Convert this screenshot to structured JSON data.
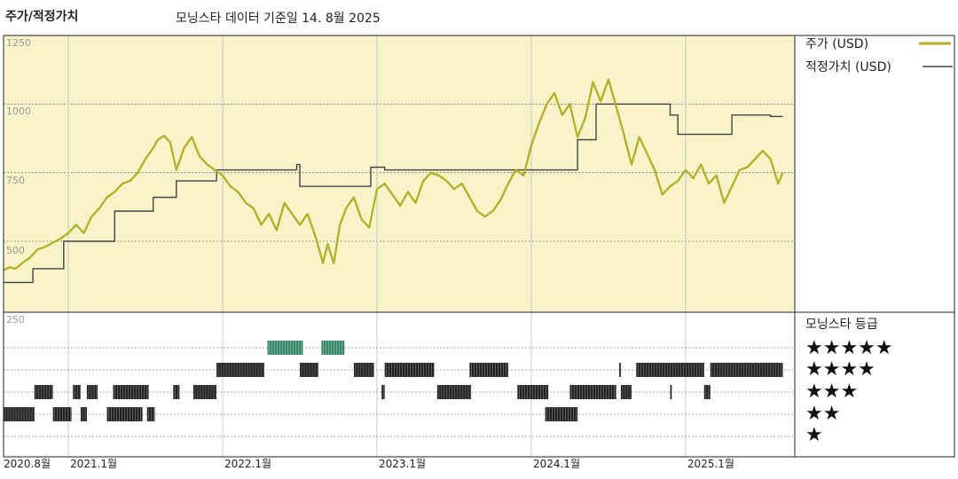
{
  "header": {
    "title": "주가/적정가치",
    "subtitle": "모닝스타 데이터 기준일 14. 8월 2025"
  },
  "colors": {
    "price": "#b3b22a",
    "fair_value": "#444444",
    "band_bg": "#f8f3c8",
    "rating_bar": "#222222",
    "rating_5": "#3a8a6a"
  },
  "legend": {
    "price_label": "주가 (USD)",
    "fair_label": "적정가치 (USD)",
    "rating_title": "모닝스타 등급",
    "stars": [
      "★★★★★",
      "★★★★",
      "★★★",
      "★★",
      "★"
    ]
  },
  "chart_data": {
    "type": "line",
    "x_tick_labels": [
      "2020.8월",
      "2021.1월",
      "2022.1월",
      "2023.1월",
      "2024.1월",
      "2025.1월"
    ],
    "x_tick_dates": [
      2020.58,
      2021.0,
      2022.0,
      2023.0,
      2024.0,
      2025.0
    ],
    "x_range": [
      2020.58,
      2025.65
    ],
    "y_tick_labels": [
      "1250",
      "1000",
      "750",
      "500",
      "250"
    ],
    "y_ticks": [
      1250,
      1000,
      750,
      500,
      250
    ],
    "ylim": [
      250,
      1250
    ],
    "grid": true,
    "series": [
      {
        "name": "주가 (USD)",
        "points": [
          [
            2020.58,
            395
          ],
          [
            2020.62,
            405
          ],
          [
            2020.66,
            400
          ],
          [
            2020.7,
            420
          ],
          [
            2020.75,
            440
          ],
          [
            2020.8,
            470
          ],
          [
            2020.85,
            480
          ],
          [
            2020.9,
            495
          ],
          [
            2020.95,
            510
          ],
          [
            2021.0,
            530
          ],
          [
            2021.05,
            560
          ],
          [
            2021.1,
            530
          ],
          [
            2021.15,
            590
          ],
          [
            2021.2,
            620
          ],
          [
            2021.25,
            660
          ],
          [
            2021.3,
            680
          ],
          [
            2021.35,
            710
          ],
          [
            2021.4,
            720
          ],
          [
            2021.45,
            750
          ],
          [
            2021.5,
            800
          ],
          [
            2021.55,
            840
          ],
          [
            2021.58,
            870
          ],
          [
            2021.62,
            885
          ],
          [
            2021.66,
            860
          ],
          [
            2021.7,
            760
          ],
          [
            2021.75,
            840
          ],
          [
            2021.8,
            880
          ],
          [
            2021.85,
            810
          ],
          [
            2021.9,
            780
          ],
          [
            2021.95,
            760
          ],
          [
            2022.0,
            740
          ],
          [
            2022.05,
            700
          ],
          [
            2022.1,
            680
          ],
          [
            2022.15,
            640
          ],
          [
            2022.2,
            620
          ],
          [
            2022.25,
            560
          ],
          [
            2022.3,
            600
          ],
          [
            2022.35,
            540
          ],
          [
            2022.4,
            640
          ],
          [
            2022.45,
            600
          ],
          [
            2022.5,
            560
          ],
          [
            2022.55,
            600
          ],
          [
            2022.6,
            520
          ],
          [
            2022.65,
            420
          ],
          [
            2022.68,
            490
          ],
          [
            2022.72,
            420
          ],
          [
            2022.76,
            560
          ],
          [
            2022.8,
            620
          ],
          [
            2022.85,
            660
          ],
          [
            2022.9,
            580
          ],
          [
            2022.95,
            550
          ],
          [
            2023.0,
            690
          ],
          [
            2023.05,
            710
          ],
          [
            2023.1,
            670
          ],
          [
            2023.15,
            630
          ],
          [
            2023.2,
            680
          ],
          [
            2023.25,
            640
          ],
          [
            2023.3,
            720
          ],
          [
            2023.35,
            750
          ],
          [
            2023.4,
            740
          ],
          [
            2023.45,
            720
          ],
          [
            2023.5,
            690
          ],
          [
            2023.55,
            710
          ],
          [
            2023.6,
            660
          ],
          [
            2023.65,
            610
          ],
          [
            2023.7,
            590
          ],
          [
            2023.75,
            610
          ],
          [
            2023.8,
            650
          ],
          [
            2023.85,
            710
          ],
          [
            2023.9,
            760
          ],
          [
            2023.95,
            740
          ],
          [
            2024.0,
            850
          ],
          [
            2024.05,
            930
          ],
          [
            2024.1,
            1000
          ],
          [
            2024.15,
            1040
          ],
          [
            2024.2,
            960
          ],
          [
            2024.25,
            1000
          ],
          [
            2024.3,
            880
          ],
          [
            2024.35,
            950
          ],
          [
            2024.4,
            1080
          ],
          [
            2024.45,
            1010
          ],
          [
            2024.5,
            1090
          ],
          [
            2024.53,
            1030
          ],
          [
            2024.56,
            970
          ],
          [
            2024.6,
            890
          ],
          [
            2024.65,
            780
          ],
          [
            2024.7,
            880
          ],
          [
            2024.75,
            820
          ],
          [
            2024.8,
            760
          ],
          [
            2024.85,
            670
          ],
          [
            2024.9,
            700
          ],
          [
            2024.95,
            720
          ],
          [
            2025.0,
            760
          ],
          [
            2025.05,
            730
          ],
          [
            2025.1,
            780
          ],
          [
            2025.15,
            710
          ],
          [
            2025.2,
            740
          ],
          [
            2025.25,
            640
          ],
          [
            2025.3,
            700
          ],
          [
            2025.35,
            760
          ],
          [
            2025.4,
            770
          ],
          [
            2025.45,
            800
          ],
          [
            2025.5,
            830
          ],
          [
            2025.55,
            800
          ],
          [
            2025.6,
            710
          ],
          [
            2025.63,
            750
          ]
        ]
      },
      {
        "name": "적정가치 (USD)",
        "points": [
          [
            2020.58,
            350
          ],
          [
            2020.77,
            350
          ],
          [
            2020.77,
            400
          ],
          [
            2020.97,
            400
          ],
          [
            2020.97,
            500
          ],
          [
            2021.3,
            500
          ],
          [
            2021.3,
            610
          ],
          [
            2021.55,
            610
          ],
          [
            2021.55,
            660
          ],
          [
            2021.7,
            660
          ],
          [
            2021.7,
            720
          ],
          [
            2021.96,
            720
          ],
          [
            2021.96,
            760
          ],
          [
            2022.48,
            760
          ],
          [
            2022.48,
            760
          ],
          [
            2022.48,
            780
          ],
          [
            2022.5,
            780
          ],
          [
            2022.5,
            700
          ],
          [
            2022.85,
            700
          ],
          [
            2022.85,
            700
          ],
          [
            2022.96,
            700
          ],
          [
            2022.96,
            770
          ],
          [
            2023.05,
            770
          ],
          [
            2023.05,
            760
          ],
          [
            2023.9,
            760
          ],
          [
            2023.9,
            760
          ],
          [
            2024.3,
            760
          ],
          [
            2024.3,
            870
          ],
          [
            2024.42,
            870
          ],
          [
            2024.42,
            1000
          ],
          [
            2024.9,
            1000
          ],
          [
            2024.9,
            960
          ],
          [
            2024.95,
            960
          ],
          [
            2024.95,
            890
          ],
          [
            2025.3,
            890
          ],
          [
            2025.3,
            960
          ],
          [
            2025.55,
            960
          ],
          [
            2025.55,
            955
          ],
          [
            2025.63,
            955
          ]
        ]
      }
    ],
    "ratings": {
      "levels": [
        5,
        4,
        3,
        2,
        1
      ],
      "segments": [
        {
          "stars": 2,
          "from": 2020.58,
          "to": 2020.78
        },
        {
          "stars": 2,
          "from": 2020.9,
          "to": 2021.02
        },
        {
          "stars": 2,
          "from": 2021.08,
          "to": 2021.12
        },
        {
          "stars": 2,
          "from": 2021.25,
          "to": 2021.48
        },
        {
          "stars": 2,
          "from": 2021.51,
          "to": 2021.56
        },
        {
          "stars": 3,
          "from": 2020.78,
          "to": 2020.9
        },
        {
          "stars": 3,
          "from": 2021.03,
          "to": 2021.08
        },
        {
          "stars": 3,
          "from": 2021.12,
          "to": 2021.19
        },
        {
          "stars": 3,
          "from": 2021.29,
          "to": 2021.52
        },
        {
          "stars": 3,
          "from": 2021.68,
          "to": 2021.72
        },
        {
          "stars": 3,
          "from": 2021.81,
          "to": 2021.96
        },
        {
          "stars": 4,
          "from": 2021.96,
          "to": 2022.27
        },
        {
          "stars": 4,
          "from": 2022.5,
          "to": 2022.62
        },
        {
          "stars": 4,
          "from": 2022.85,
          "to": 2022.98
        },
        {
          "stars": 4,
          "from": 2023.05,
          "to": 2023.37
        },
        {
          "stars": 4,
          "from": 2023.6,
          "to": 2023.85
        },
        {
          "stars": 4,
          "from": 2024.57,
          "to": 2024.58
        },
        {
          "stars": 4,
          "from": 2024.68,
          "to": 2025.12
        },
        {
          "stars": 4,
          "from": 2025.16,
          "to": 2025.63
        },
        {
          "stars": 5,
          "from": 2022.29,
          "to": 2022.52
        },
        {
          "stars": 5,
          "from": 2022.64,
          "to": 2022.79
        },
        {
          "stars": 3,
          "from": 2023.03,
          "to": 2023.05
        },
        {
          "stars": 3,
          "from": 2023.39,
          "to": 2023.61
        },
        {
          "stars": 3,
          "from": 2023.91,
          "to": 2024.11
        },
        {
          "stars": 3,
          "from": 2024.25,
          "to": 2024.55
        },
        {
          "stars": 3,
          "from": 2024.58,
          "to": 2024.65
        },
        {
          "stars": 3,
          "from": 2024.9,
          "to": 2024.91
        },
        {
          "stars": 3,
          "from": 2025.12,
          "to": 2025.16
        },
        {
          "stars": 2,
          "from": 2024.09,
          "to": 2024.3
        }
      ]
    }
  }
}
